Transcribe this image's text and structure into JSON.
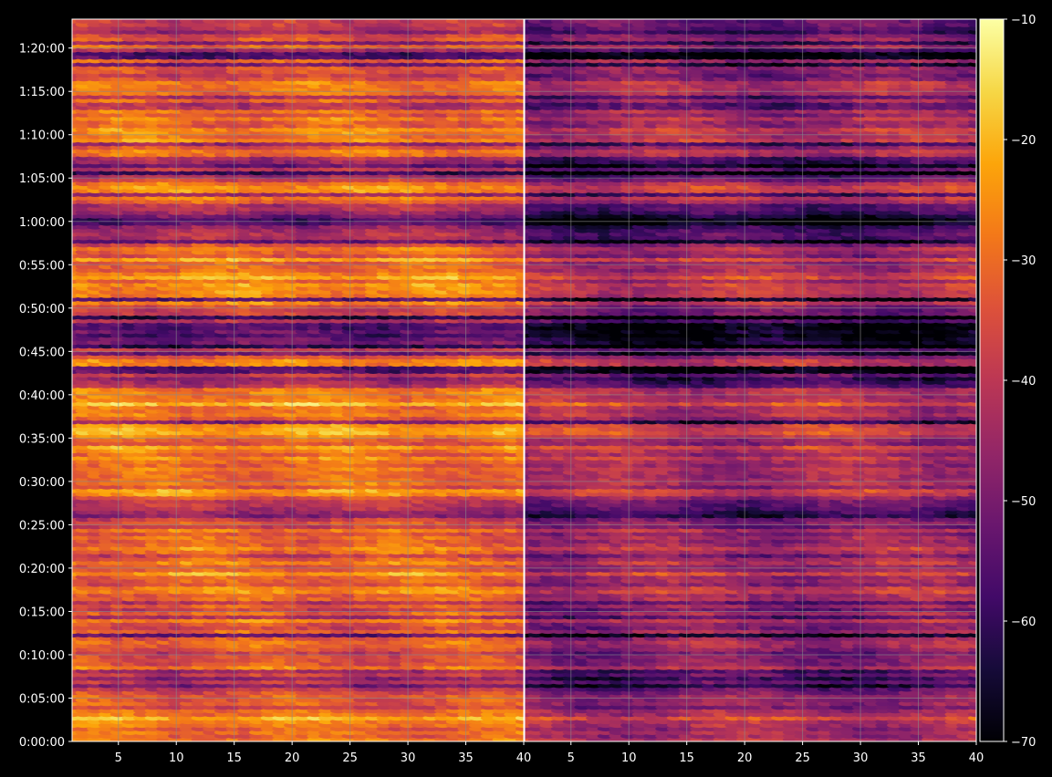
{
  "chart_data": {
    "type": "heatmap",
    "title": "",
    "xlabel": "",
    "ylabel": "",
    "panels": [
      {
        "name": "",
        "x_range": [
          1,
          40
        ]
      },
      {
        "name": "",
        "x_range": [
          1,
          40
        ]
      }
    ],
    "x_ticks": [
      "5",
      "10",
      "15",
      "20",
      "25",
      "30",
      "35",
      "40"
    ],
    "y_ticks": [
      "0:00:00",
      "0:05:00",
      "0:10:00",
      "0:15:00",
      "0:20:00",
      "0:25:00",
      "0:30:00",
      "0:35:00",
      "0:40:00",
      "0:45:00",
      "0:50:00",
      "0:55:00",
      "1:00:00",
      "1:05:00",
      "1:10:00",
      "1:15:00",
      "1:20:00"
    ],
    "y_range_seconds": [
      0,
      5000
    ],
    "colorbar": {
      "colormap": "inferno",
      "vmin": -70,
      "vmax": -10,
      "ticks": [
        "−70",
        "−60",
        "−50",
        "−40",
        "−30",
        "−20",
        "−10"
      ]
    },
    "grid": true,
    "background": "#000000",
    "grid_color": "#8a8a8a",
    "row_profile_left": [
      {
        "t": "0:00:30",
        "v": -33
      },
      {
        "t": "0:02:30",
        "v": -24
      },
      {
        "t": "0:04:30",
        "v": -33
      },
      {
        "t": "0:06:30",
        "v": -48
      },
      {
        "t": "0:08:30",
        "v": -31
      },
      {
        "t": "0:10:00",
        "v": -34
      },
      {
        "t": "0:12:00",
        "v": -30
      },
      {
        "t": "0:14:00",
        "v": -31
      },
      {
        "t": "0:16:00",
        "v": -34
      },
      {
        "t": "0:19:00",
        "v": -28
      },
      {
        "t": "0:21:00",
        "v": -33
      },
      {
        "t": "0:23:00",
        "v": -30
      },
      {
        "t": "0:24:30",
        "v": -30
      },
      {
        "t": "0:26:00",
        "v": -46
      },
      {
        "t": "0:28:30",
        "v": -30
      },
      {
        "t": "0:30:00",
        "v": -25
      },
      {
        "t": "0:32:30",
        "v": -31
      },
      {
        "t": "0:35:00",
        "v": -27
      },
      {
        "t": "0:37:00",
        "v": -27
      },
      {
        "t": "0:40:00",
        "v": -25
      },
      {
        "t": "0:42:00",
        "v": -45
      },
      {
        "t": "0:43:30",
        "v": -30
      },
      {
        "t": "0:45:00",
        "v": -34
      },
      {
        "t": "0:47:00",
        "v": -57
      },
      {
        "t": "0:49:30",
        "v": -38
      },
      {
        "t": "0:51:00",
        "v": -31
      },
      {
        "t": "0:53:00",
        "v": -26
      },
      {
        "t": "0:55:30",
        "v": -27
      },
      {
        "t": "0:57:30",
        "v": -32
      },
      {
        "t": "1:00:00",
        "v": -52
      },
      {
        "t": "1:03:30",
        "v": -24
      },
      {
        "t": "1:06:30",
        "v": -50
      },
      {
        "t": "1:08:00",
        "v": -29
      },
      {
        "t": "1:10:00",
        "v": -31
      },
      {
        "t": "1:12:00",
        "v": -28
      },
      {
        "t": "1:14:30",
        "v": -27
      },
      {
        "t": "1:16:00",
        "v": -28
      },
      {
        "t": "1:18:30",
        "v": -38
      },
      {
        "t": "1:21:00",
        "v": -36
      }
    ],
    "right_panel_offset": -14
  }
}
